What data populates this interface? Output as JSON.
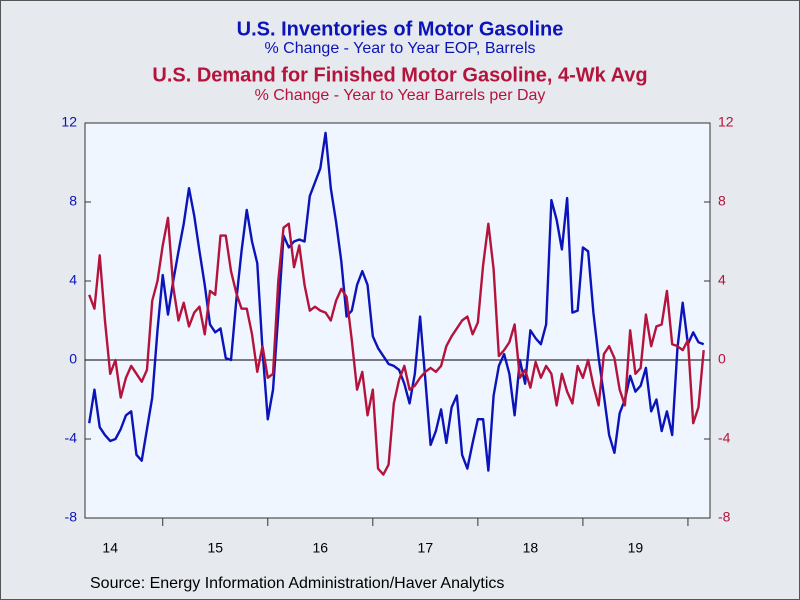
{
  "chart_data": {
    "type": "line",
    "source": "Source:  Energy Information Administration/Haver Analytics",
    "x": [
      2014.3,
      2014.35,
      2014.4,
      2014.45,
      2014.5,
      2014.55,
      2014.6,
      2014.65,
      2014.7,
      2014.75,
      2014.8,
      2014.85,
      2014.9,
      2014.95,
      2015.0,
      2015.05,
      2015.1,
      2015.15,
      2015.2,
      2015.25,
      2015.3,
      2015.35,
      2015.4,
      2015.45,
      2015.5,
      2015.55,
      2015.6,
      2015.65,
      2015.7,
      2015.75,
      2015.8,
      2015.85,
      2015.9,
      2015.95,
      2016.0,
      2016.05,
      2016.1,
      2016.15,
      2016.2,
      2016.25,
      2016.3,
      2016.35,
      2016.4,
      2016.45,
      2016.5,
      2016.55,
      2016.6,
      2016.65,
      2016.7,
      2016.75,
      2016.8,
      2016.85,
      2016.9,
      2016.95,
      2017.0,
      2017.05,
      2017.1,
      2017.15,
      2017.2,
      2017.25,
      2017.3,
      2017.35,
      2017.4,
      2017.45,
      2017.5,
      2017.55,
      2017.6,
      2017.65,
      2017.7,
      2017.75,
      2017.8,
      2017.85,
      2017.9,
      2017.95,
      2018.0,
      2018.05,
      2018.1,
      2018.15,
      2018.2,
      2018.25,
      2018.3,
      2018.35,
      2018.4,
      2018.45,
      2018.5,
      2018.55,
      2018.6,
      2018.65,
      2018.7,
      2018.75,
      2018.8,
      2018.85,
      2018.9,
      2018.95,
      2019.0,
      2019.05,
      2019.1,
      2019.15,
      2019.2,
      2019.25,
      2019.3,
      2019.35,
      2019.4,
      2019.45,
      2019.5,
      2019.55,
      2019.6,
      2019.65,
      2019.7,
      2019.75,
      2019.8,
      2019.85,
      2019.9,
      2019.95,
      2020.0,
      2020.05,
      2020.1,
      2020.15
    ],
    "series": [
      {
        "name": "U.S. Inventories of Motor Gasoline",
        "subtitle": "% Change - Year to Year    EOP,  Barrels",
        "color": "#0b14b8",
        "axis": "y",
        "values": [
          -3.2,
          -1.5,
          -3.4,
          -3.8,
          -4.1,
          -4,
          -3.5,
          -2.8,
          -2.6,
          -4.8,
          -5.1,
          -3.5,
          -1.9,
          1.5,
          4.3,
          2.3,
          4,
          5.5,
          6.9,
          8.7,
          7.3,
          5.5,
          3.8,
          1.8,
          1.4,
          1.6,
          0.1,
          0,
          3,
          5.5,
          7.6,
          6,
          4.9,
          0.5,
          -3,
          -1.5,
          2.3,
          6.3,
          5.7,
          6,
          6.1,
          6,
          8.3,
          9,
          9.7,
          11.5,
          8.7,
          7,
          5,
          2.2,
          2.5,
          3.8,
          4.5,
          3.8,
          1.2,
          0.6,
          0.2,
          -0.2,
          -0.3,
          -0.5,
          -1.2,
          -2.2,
          -0.7,
          2.2,
          -1,
          -4.3,
          -3.6,
          -2.5,
          -4.2,
          -2.4,
          -1.8,
          -4.8,
          -5.5,
          -4.2,
          -3,
          -3,
          -5.6,
          -1.8,
          -0.3,
          0.3,
          -0.7,
          -2.8,
          0,
          -1.2,
          1.5,
          1.1,
          0.8,
          1.8,
          8.1,
          7.1,
          5.6,
          8.2,
          2.4,
          2.5,
          5.7,
          5.5,
          2.4,
          0.1,
          -1.8,
          -3.8,
          -4.7,
          -2.7,
          -2,
          -0.8,
          -1.6,
          -1.3,
          -0.4,
          -2.6,
          -2,
          -3.6,
          -2.6,
          -3.8,
          0.6,
          2.9,
          0.8,
          1.4,
          0.9,
          0.8
        ]
      },
      {
        "name": "U.S. Demand for Finished Motor Gasoline, 4-Wk Avg",
        "subtitle": "% Change - Year to Year     Barrels per Day",
        "color": "#b4143c",
        "axis": "y2",
        "values": [
          3.3,
          2.6,
          5.3,
          2,
          -0.7,
          0,
          -1.9,
          -0.9,
          -0.3,
          -0.7,
          -1.1,
          -0.5,
          3,
          4,
          5.8,
          7.2,
          3.7,
          2,
          2.9,
          1.7,
          2.4,
          2.7,
          1.3,
          3.5,
          3.3,
          6.3,
          6.3,
          4.5,
          3.4,
          2.6,
          2.6,
          1.3,
          -0.6,
          0.7,
          -0.9,
          -0.7,
          4,
          6.7,
          6.9,
          4.7,
          5.8,
          3.8,
          2.5,
          2.7,
          2.5,
          2.4,
          2,
          3,
          3.6,
          3.2,
          1,
          -1.5,
          -0.6,
          -2.8,
          -1.5,
          -5.5,
          -5.8,
          -5.3,
          -2.2,
          -1,
          -0.3,
          -1.5,
          -1.3,
          -0.9,
          -0.6,
          -0.4,
          -0.6,
          -0.3,
          0.7,
          1.2,
          1.6,
          2,
          2.2,
          1.3,
          1.9,
          4.8,
          6.9,
          4.6,
          0.2,
          0.5,
          0.9,
          1.8,
          -0.9,
          -0.5,
          -1.4,
          -0.1,
          -0.9,
          -0.3,
          -0.7,
          -2.3,
          -0.7,
          -1.6,
          -2.2,
          -0.3,
          -0.9,
          0,
          -1.3,
          -2.3,
          0.3,
          0.7,
          0.1,
          -1.5,
          -2.3,
          1.5,
          -0.7,
          -0.4,
          2.3,
          0.7,
          1.7,
          1.8,
          3.5,
          0.8,
          0.7,
          0.5,
          1,
          -3.2,
          -2.4,
          0.5
        ]
      }
    ],
    "xlim": [
      2014.26,
      2020.21
    ],
    "xticks": [
      {
        "value": 2014.5,
        "label": "14"
      },
      {
        "value": 2015.5,
        "label": "15"
      },
      {
        "value": 2016.5,
        "label": "16"
      },
      {
        "value": 2017.5,
        "label": "17"
      },
      {
        "value": 2018.5,
        "label": "18"
      },
      {
        "value": 2019.5,
        "label": "19"
      }
    ],
    "xtick_marks": [
      2015,
      2016,
      2017,
      2018,
      2019,
      2020
    ],
    "ylim": [
      -8,
      12
    ],
    "yticks": [
      -8,
      -4,
      0,
      4,
      8,
      12
    ],
    "y2lim": [
      -8,
      12
    ],
    "y2ticks": [
      -8,
      -4,
      0,
      4,
      8,
      12
    ],
    "reference_line": 0,
    "grid": false
  }
}
